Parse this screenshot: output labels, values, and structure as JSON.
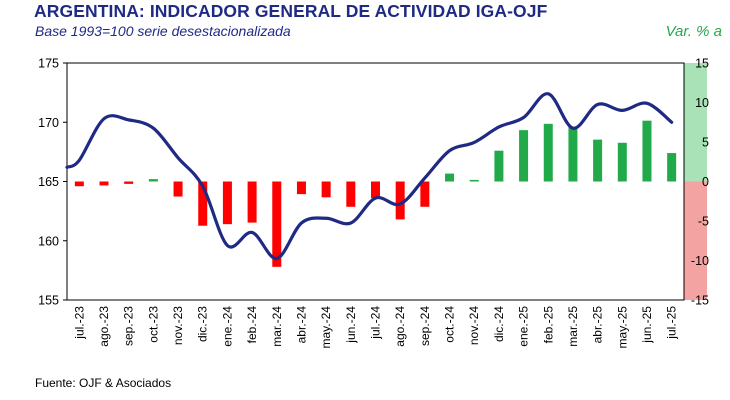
{
  "chart_data": {
    "type": "bar+line",
    "title": "ARGENTINA: INDICADOR GENERAL DE ACTIVIDAD IGA-OJF",
    "subtitle": "Base 1993=100 serie desestacionalizada",
    "y2label": "Var. % a",
    "source": "Fuente: OJF & Asociados",
    "categories": [
      "jul.-23",
      "ago.-23",
      "sep.-23",
      "oct.-23",
      "nov.-23",
      "dic.-23",
      "ene.-24",
      "feb.-24",
      "mar.-24",
      "abr.-24",
      "may.-24",
      "jun.-24",
      "jul.-24",
      "ago.-24",
      "sep.-24",
      "oct.-24",
      "nov.-24",
      "dic.-24",
      "ene.-25",
      "feb.-25",
      "mar.-25",
      "abr.-25",
      "may.-25",
      "jun.-25",
      "jul.-25"
    ],
    "series": [
      {
        "type": "line",
        "axis": "left",
        "values": [
          166.8,
          170.3,
          170.2,
          169.5,
          167.0,
          164.6,
          159.6,
          160.7,
          158.5,
          161.5,
          161.9,
          161.5,
          163.6,
          163.1,
          165.3,
          167.6,
          168.3,
          169.6,
          170.4,
          172.4,
          169.5,
          171.5,
          171.0,
          171.6,
          170.0
        ],
        "color": "#1f2a85"
      },
      {
        "type": "bar",
        "axis": "right",
        "values": [
          -0.6,
          -0.5,
          -0.3,
          0.3,
          -1.9,
          -5.6,
          -5.4,
          -5.2,
          -10.8,
          -1.6,
          -2.0,
          -3.2,
          -2.1,
          -4.8,
          -3.2,
          1.0,
          0.2,
          3.9,
          6.5,
          7.3,
          6.9,
          5.3,
          4.9,
          7.7,
          3.6
        ]
      }
    ],
    "yleft": {
      "ylim": [
        155,
        175
      ],
      "ticks": [
        155,
        160,
        165,
        170,
        175
      ]
    },
    "yright": {
      "ylim": [
        -15,
        15
      ],
      "ticks": [
        "15",
        "10",
        "5",
        "0",
        "-5",
        "-10",
        "-15"
      ]
    },
    "colors": {
      "line": "#1f2a85",
      "bar_positive": "#22a94a",
      "bar_negative": "#ff0000",
      "band_positive": "#a8e2b6",
      "band_negative": "#f4a3a3",
      "title": "#1f2a85",
      "y2title": "#22a94a"
    }
  }
}
